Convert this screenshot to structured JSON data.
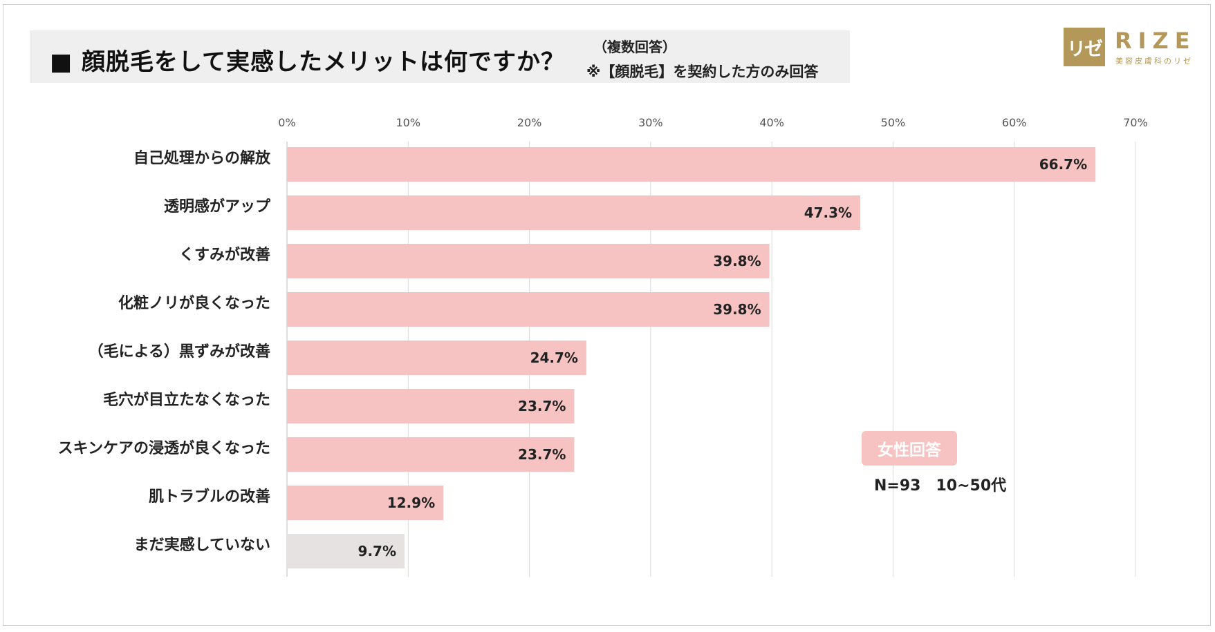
{
  "title": {
    "main": "■ 顔脱毛をして実感したメリットは何ですか？",
    "sub1": "（複数回答）",
    "sub2": "※【顔脱毛】を契約した方のみ回答"
  },
  "logo": {
    "mark": "リゼ",
    "name": "RIZE",
    "tagline": "美容皮膚科のリゼ"
  },
  "badge": "女性回答",
  "sample_note": "N=93　10~50代",
  "colors": {
    "bar": "#f6c3c2",
    "bar_muted": "#e6e2e2",
    "grid": "#d9d9d9",
    "axis": "#bfbfbf",
    "badge": "#f6c3c2",
    "logo": "#b3985a"
  },
  "chart_data": {
    "type": "bar",
    "orientation": "horizontal",
    "title": "顔脱毛をして実感したメリットは何ですか？",
    "xlabel": "",
    "ylabel": "",
    "xlim": [
      0,
      70
    ],
    "ticks": [
      0,
      10,
      20,
      30,
      40,
      50,
      60,
      70
    ],
    "tick_labels": [
      "0%",
      "10%",
      "20%",
      "30%",
      "40%",
      "50%",
      "60%",
      "70%"
    ],
    "grid": true,
    "categories": [
      "自己処理からの解放",
      "透明感がアップ",
      "くすみが改善",
      "化粧ノリが良くなった",
      "（毛による）黒ずみが改善",
      "毛穴が目立たなくなった",
      "スキンケアの浸透が良くなった",
      "肌トラブルの改善",
      "まだ実感していない"
    ],
    "values": [
      66.7,
      47.3,
      39.8,
      39.8,
      24.7,
      23.7,
      23.7,
      12.9,
      9.7
    ],
    "value_labels": [
      "66.7%",
      "47.3%",
      "39.8%",
      "39.8%",
      "24.7%",
      "23.7%",
      "23.7%",
      "12.9%",
      "9.7%"
    ],
    "muted": [
      false,
      false,
      false,
      false,
      false,
      false,
      false,
      false,
      true
    ]
  }
}
